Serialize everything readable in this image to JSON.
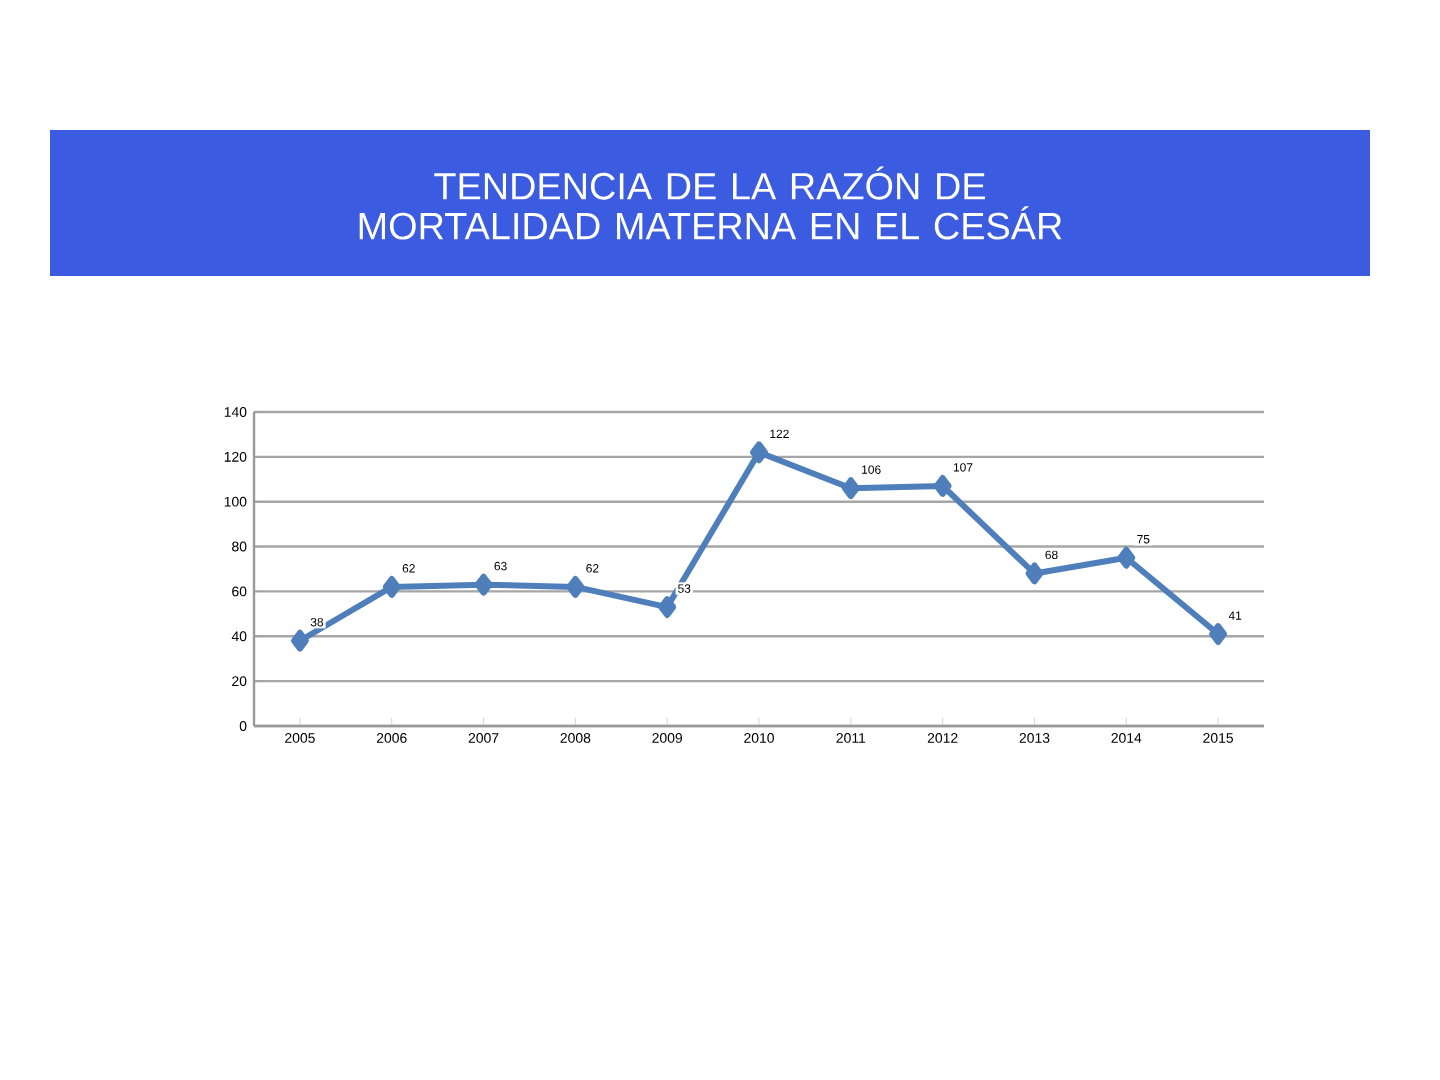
{
  "chart_data": {
    "type": "line",
    "title": "TENDENCIA DE LA RAZÓN DE MORTALIDAD MATERNA EN EL CESÁR",
    "categories": [
      "2005",
      "2006",
      "2007",
      "2008",
      "2009",
      "2010",
      "2011",
      "2012",
      "2013",
      "2014",
      "2015"
    ],
    "values": [
      38,
      62,
      63,
      62,
      53,
      122,
      106,
      107,
      68,
      75,
      41
    ],
    "color": "#4f7fbb",
    "ylim": [
      0,
      140
    ],
    "yticks": [
      0,
      20,
      40,
      60,
      80,
      100,
      120,
      140
    ],
    "grid": "y",
    "marker": "diamond",
    "line_style": "solid",
    "data_labels": true
  }
}
